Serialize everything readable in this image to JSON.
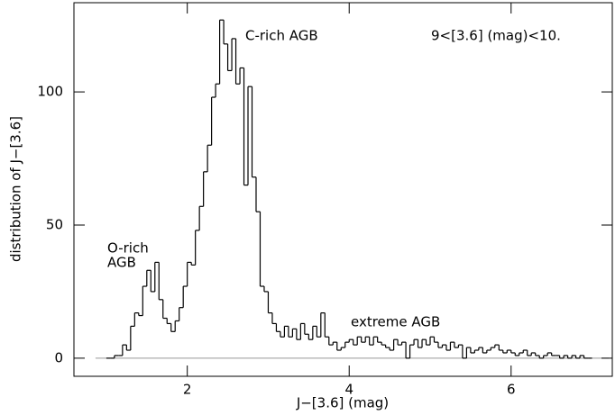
{
  "chart_data": {
    "type": "histogram",
    "x_label": "J−[3.6] (mag)",
    "y_label": "distribution of J−[3.6]",
    "annotations": [
      "C-rich AGB",
      "9<[3.6] (mag)<10.",
      "O-rich",
      "AGB",
      "extreme AGB"
    ],
    "color": "#000000",
    "bins": [
      1.0,
      1.05,
      1.1,
      1.15,
      1.2,
      1.25,
      1.3,
      1.35,
      1.4,
      1.45,
      1.5,
      1.55,
      1.6,
      1.65,
      1.7,
      1.75,
      1.8,
      1.85,
      1.9,
      1.95,
      2.0,
      2.05,
      2.1,
      2.15,
      2.2,
      2.25,
      2.3,
      2.35,
      2.4,
      2.45,
      2.5,
      2.55,
      2.6,
      2.65,
      2.7,
      2.75,
      2.8,
      2.85,
      2.9,
      2.95,
      3.0,
      3.05,
      3.1,
      3.15,
      3.2,
      3.25,
      3.3,
      3.35,
      3.4,
      3.45,
      3.5,
      3.55,
      3.6,
      3.65,
      3.7,
      3.75,
      3.8,
      3.85,
      3.9,
      3.95,
      4.0,
      4.05,
      4.1,
      4.15,
      4.2,
      4.25,
      4.3,
      4.35,
      4.4,
      4.45,
      4.5,
      4.55,
      4.6,
      4.65,
      4.7,
      4.75,
      4.8,
      4.85,
      4.9,
      4.95,
      5.0,
      5.05,
      5.1,
      5.15,
      5.2,
      5.25,
      5.3,
      5.35,
      5.4,
      5.45,
      5.5,
      5.55,
      5.6,
      5.65,
      5.7,
      5.75,
      5.8,
      5.85,
      5.9,
      5.95,
      6.0,
      6.05,
      6.1,
      6.15,
      6.2,
      6.25,
      6.3,
      6.35,
      6.4,
      6.45,
      6.5,
      6.55,
      6.6,
      6.65,
      6.7,
      6.75,
      6.8,
      6.85,
      6.9,
      6.95,
      7.0
    ],
    "counts": [
      0,
      0,
      1,
      1,
      5,
      3,
      12,
      17,
      16,
      27,
      33,
      25,
      36,
      22,
      15,
      13,
      10,
      14,
      19,
      27,
      36,
      35,
      48,
      57,
      70,
      80,
      98,
      103,
      127,
      118,
      108,
      120,
      103,
      109,
      65,
      102,
      68,
      55,
      27,
      25,
      17,
      13,
      10,
      8,
      12,
      8,
      11,
      7,
      13,
      9,
      7,
      12,
      8,
      17,
      8,
      5,
      6,
      3,
      4,
      6,
      7,
      5,
      8,
      6,
      8,
      5,
      8,
      6,
      5,
      4,
      3,
      7,
      5,
      6,
      0,
      5,
      7,
      4,
      7,
      5,
      8,
      6,
      4,
      5,
      3,
      6,
      4,
      5,
      0,
      4,
      2,
      3,
      4,
      2,
      3,
      4,
      5,
      3,
      2,
      3,
      2,
      1,
      2,
      3,
      1,
      2,
      1,
      0,
      1,
      2,
      1,
      1,
      0,
      1,
      0,
      1,
      0,
      1,
      0,
      0
    ],
    "xlim": [
      0.6,
      7.25
    ],
    "ylim": [
      -6.8,
      133.5
    ],
    "xticks": [
      2,
      4,
      6
    ],
    "yticks": [
      0,
      50,
      100
    ]
  }
}
